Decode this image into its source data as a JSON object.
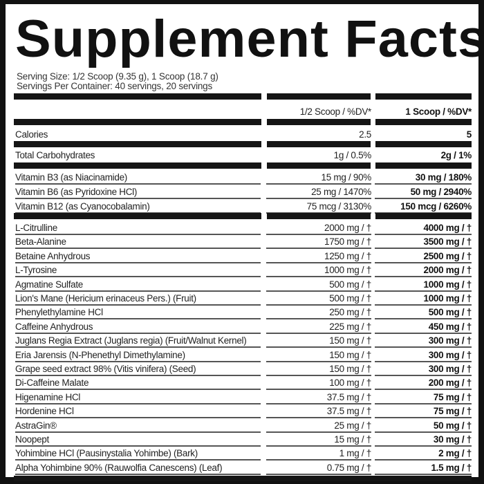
{
  "title": "Supplement Facts",
  "serving_size": "Serving Size: 1/2 Scoop (9.35 g), 1 Scoop (18.7 g)",
  "servings_per_container": "Servings Per Container: 40 servings, 20 servings",
  "columns": [
    "1/2 Scoop / %DV*",
    "1 Scoop / %DV*"
  ],
  "calories": {
    "name": "Calories",
    "half": "2.5",
    "full": "5"
  },
  "carbs": {
    "name": "Total Carbohydrates",
    "half": "1g / 0.5%",
    "full": "2g / 1%"
  },
  "vitamins": [
    {
      "name": "Vitamin B3 (as Niacinamide)",
      "half": "15 mg / 90%",
      "full": "30 mg / 180%"
    },
    {
      "name": "Vitamin B6 (as Pyridoxine HCl)",
      "half": "25 mg / 1470%",
      "full": "50 mg / 2940%"
    },
    {
      "name": "Vitamin B12 (as Cyanocobalamin)",
      "half": "75 mcg / 3130%",
      "full": "150 mcg / 6260%"
    }
  ],
  "ingredients": [
    {
      "name": "L-Citrulline",
      "half": "2000 mg / †",
      "full": "4000 mg / †"
    },
    {
      "name": "Beta-Alanine",
      "half": "1750 mg / †",
      "full": "3500 mg / †"
    },
    {
      "name": "Betaine Anhydrous",
      "half": "1250 mg / †",
      "full": "2500 mg / †"
    },
    {
      "name": "L-Tyrosine",
      "half": "1000 mg / †",
      "full": "2000 mg / †"
    },
    {
      "name": "Agmatine Sulfate",
      "half": "500 mg / †",
      "full": "1000 mg / †"
    },
    {
      "name": "Lion's Mane (Hericium erinaceus Pers.) (Fruit)",
      "half": "500 mg / †",
      "full": "1000 mg / †"
    },
    {
      "name": "Phenylethylamine HCl",
      "half": "250 mg / †",
      "full": "500 mg / †"
    },
    {
      "name": "Caffeine Anhydrous",
      "half": "225 mg / †",
      "full": "450 mg / †"
    },
    {
      "name": "Juglans Regia Extract (Juglans regia) (Fruit/Walnut Kernel)",
      "half": "150 mg / †",
      "full": "300 mg / †"
    },
    {
      "name": "Eria Jarensis (N-Phenethyl Dimethylamine)",
      "half": "150 mg / †",
      "full": "300 mg / †"
    },
    {
      "name": "Grape seed extract 98% (Vitis vinifera) (Seed)",
      "half": "150 mg / †",
      "full": "300 mg / †"
    },
    {
      "name": "Di-Caffeine Malate",
      "half": "100 mg / †",
      "full": "200 mg / †"
    },
    {
      "name": "Higenamine HCl",
      "half": "37.5 mg / †",
      "full": "75 mg / †"
    },
    {
      "name": "Hordenine HCl",
      "half": "37.5 mg / †",
      "full": "75 mg / †"
    },
    {
      "name": "AstraGin®",
      "half": "25 mg / †",
      "full": "50 mg / †"
    },
    {
      "name": "Noopept",
      "half": "15 mg / †",
      "full": "30 mg / †"
    },
    {
      "name": "Yohimbine HCl (Pausinystalia Yohimbe) (Bark)",
      "half": "1 mg / †",
      "full": "2 mg / †"
    },
    {
      "name": "Alpha Yohimbine 90% (Rauwolfia Canescens) (Leaf)",
      "half": "0.75 mg / †",
      "full": "1.5 mg / †"
    }
  ]
}
